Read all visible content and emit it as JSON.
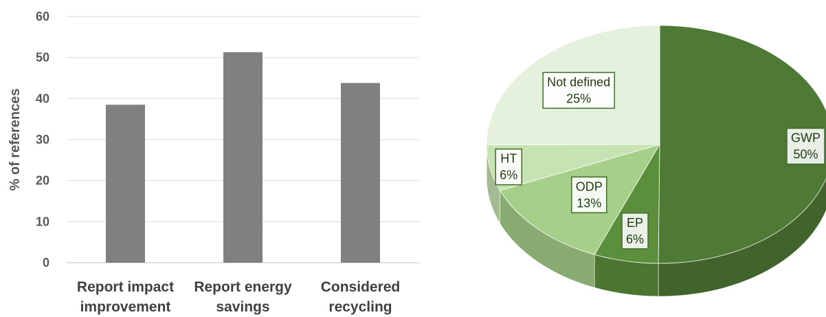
{
  "chart_data": [
    {
      "type": "bar",
      "ylabel": "% of references",
      "xlabel": "",
      "ylim": [
        0,
        60
      ],
      "yticks": [
        0,
        10,
        20,
        30,
        40,
        50,
        60
      ],
      "grid": true,
      "categories": [
        [
          "Report impact",
          "improvement"
        ],
        [
          "Report energy",
          "savings"
        ],
        [
          "Considered",
          "recycling"
        ]
      ],
      "values": [
        38.5,
        51.3,
        43.8
      ],
      "colors": {
        "bar": "#808080",
        "grid": "#d9d9d9",
        "axis": "#bfbfbf"
      }
    },
    {
      "type": "pie",
      "style": "3d",
      "slices": [
        {
          "label": "GWP",
          "percent_label": "50%",
          "value": 50,
          "color": "#4e7a35"
        },
        {
          "label": "EP",
          "percent_label": "6%",
          "value": 6,
          "color": "#5b8f3c"
        },
        {
          "label": "ODP",
          "percent_label": "13%",
          "value": 12.5,
          "color": "#a6d08a"
        },
        {
          "label": "HT",
          "percent_label": "6%",
          "value": 6.25,
          "color": "#c8e3b3"
        },
        {
          "label": "Not defined",
          "percent_label": "25%",
          "value": 25,
          "color": "#e6f1dd"
        }
      ]
    }
  ]
}
